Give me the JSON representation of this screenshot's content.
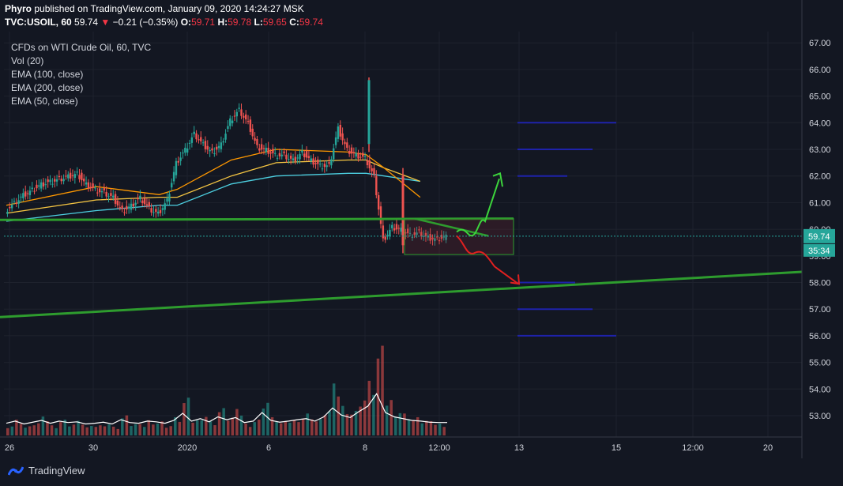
{
  "header": {
    "author": "Phyro",
    "published_text": "published on TradingView.com, January 09, 2020 14:24:27 MSK",
    "symbol": "TVC:USOIL, 60",
    "last": "59.74",
    "arrow": "▼",
    "change": "−0.21 (−0.35%)",
    "o_label": "O:",
    "o": "59.71",
    "h_label": "H:",
    "h": "59.78",
    "l_label": "L:",
    "l": "59.65",
    "c_label": "C:",
    "c": "59.74"
  },
  "legend": {
    "title": "CFDs on WTI Crude Oil, 60, TVC",
    "items": [
      "Vol (20)",
      "EMA (100, close)",
      "EMA (200, close)",
      "EMA (50, close)"
    ]
  },
  "footer": {
    "brand": "TradingView"
  },
  "colors": {
    "background": "#131722",
    "up": "#26a69a",
    "down": "#ef5350",
    "ema50": "#ff9800",
    "ema100": "#f5c542",
    "ema200": "#4dd0e1",
    "trendline": "#2e9c2e",
    "level": "#1e22aa",
    "last_price_tag": "#26a69a"
  },
  "chart_data": {
    "type": "candlestick",
    "title": "CFDs on WTI Crude Oil, 60, TVC",
    "ylim": [
      52.5,
      67.3
    ],
    "y_ticks": [
      "67.00",
      "66.00",
      "65.00",
      "64.00",
      "63.00",
      "62.00",
      "61.00",
      "60.00",
      "59.00",
      "58.00",
      "57.00",
      "56.00",
      "55.00",
      "54.00",
      "53.00"
    ],
    "x_ticks": [
      "26",
      "30",
      "2020",
      "6",
      "8",
      "12:00",
      "13",
      "15",
      "12:00",
      "20"
    ],
    "last_price": "59.74",
    "countdown": "35:34",
    "price_path": [
      [
        0,
        60.7
      ],
      [
        1,
        61.0
      ],
      [
        2,
        61.3
      ],
      [
        3,
        61.5
      ],
      [
        4,
        61.7
      ],
      [
        5,
        61.8
      ],
      [
        6,
        61.9
      ],
      [
        7,
        62.0
      ],
      [
        8,
        62.1
      ],
      [
        9,
        61.7
      ],
      [
        10,
        61.5
      ],
      [
        11,
        61.4
      ],
      [
        12,
        61.2
      ],
      [
        13,
        60.7
      ],
      [
        14,
        60.9
      ],
      [
        15,
        61.2
      ],
      [
        16,
        60.8
      ],
      [
        17,
        60.6
      ],
      [
        18,
        61.1
      ],
      [
        19,
        62.5
      ],
      [
        20,
        63.0
      ],
      [
        21,
        63.6
      ],
      [
        22,
        63.2
      ],
      [
        23,
        62.9
      ],
      [
        24,
        63.2
      ],
      [
        25,
        64.1
      ],
      [
        26,
        64.5
      ],
      [
        27,
        64.0
      ],
      [
        28,
        63.1
      ],
      [
        29,
        63.0
      ],
      [
        30,
        62.8
      ],
      [
        31,
        62.8
      ],
      [
        32,
        62.6
      ],
      [
        33,
        62.9
      ],
      [
        34,
        62.6
      ],
      [
        35,
        62.4
      ],
      [
        36,
        62.4
      ],
      [
        37,
        63.8
      ],
      [
        38,
        63.0
      ],
      [
        39,
        62.8
      ],
      [
        40,
        62.7
      ],
      [
        41,
        62.0
      ],
      [
        42,
        59.6
      ],
      [
        43,
        60.1
      ],
      [
        44,
        60.0
      ],
      [
        45,
        59.8
      ],
      [
        46,
        59.9
      ],
      [
        47,
        59.7
      ],
      [
        48,
        59.65
      ],
      [
        49,
        59.74
      ]
    ],
    "ema50": [
      [
        0,
        60.9
      ],
      [
        10,
        61.6
      ],
      [
        17,
        61.3
      ],
      [
        19,
        61.5
      ],
      [
        25,
        62.6
      ],
      [
        30,
        63.0
      ],
      [
        38,
        62.9
      ],
      [
        40,
        62.8
      ],
      [
        42,
        62.3
      ],
      [
        46,
        61.2
      ]
    ],
    "ema100": [
      [
        0,
        60.6
      ],
      [
        10,
        61.1
      ],
      [
        17,
        61.2
      ],
      [
        19,
        61.2
      ],
      [
        25,
        62.0
      ],
      [
        30,
        62.5
      ],
      [
        38,
        62.6
      ],
      [
        40,
        62.6
      ],
      [
        42,
        62.3
      ],
      [
        46,
        61.8
      ]
    ],
    "ema200": [
      [
        0,
        60.3
      ],
      [
        10,
        60.7
      ],
      [
        17,
        60.9
      ],
      [
        19,
        60.9
      ],
      [
        25,
        61.7
      ],
      [
        30,
        62.0
      ],
      [
        38,
        62.1
      ],
      [
        40,
        62.1
      ],
      [
        42,
        62.0
      ],
      [
        46,
        61.8
      ]
    ],
    "volume_bars": [
      0.12,
      0.18,
      0.1,
      0.15,
      0.2,
      0.12,
      0.18,
      0.14,
      0.16,
      0.1,
      0.12,
      0.15,
      0.1,
      0.22,
      0.14,
      0.12,
      0.18,
      0.16,
      0.12,
      0.2,
      0.4,
      0.18,
      0.25,
      0.16,
      0.3,
      0.22,
      0.28,
      0.14,
      0.18,
      0.42,
      0.2,
      0.15,
      0.18,
      0.22,
      0.25,
      0.18,
      0.3,
      0.55,
      0.35,
      0.28,
      0.45,
      0.6,
      0.95,
      0.42,
      0.3,
      0.25,
      0.2,
      0.18,
      0.15,
      0.14
    ],
    "drawings": {
      "upper_trendline": [
        [
          0,
          60.35
        ],
        [
          650,
          60.4
        ]
      ],
      "lower_trendline": [
        [
          0,
          56.7
        ],
        [
          1015,
          58.4
        ]
      ],
      "triangle_line": [
        [
          525,
          60.4
        ],
        [
          618,
          59.75
        ]
      ],
      "box": {
        "x_from": 512,
        "x_to": 650,
        "y_top": 60.4,
        "y_bottom": 59.05
      },
      "horizontal_levels": [
        {
          "x_from": 655,
          "x_to": 780,
          "y": 64.0
        },
        {
          "x_from": 655,
          "x_to": 750,
          "y": 63.0
        },
        {
          "x_from": 655,
          "x_to": 718,
          "y": 62.0
        },
        {
          "x_from": 655,
          "x_to": 728,
          "y": 58.0
        },
        {
          "x_from": 655,
          "x_to": 750,
          "y": 57.0
        },
        {
          "x_from": 655,
          "x_to": 780,
          "y": 56.0
        }
      ]
    }
  }
}
